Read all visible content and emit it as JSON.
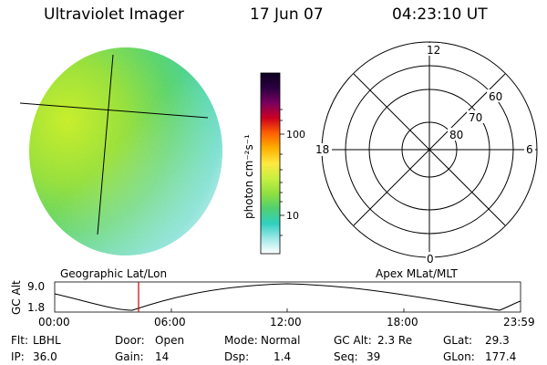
{
  "header": {
    "instrument": "Ultraviolet Imager",
    "date": "17 Jun 07",
    "time": "04:23:10 UT"
  },
  "colorbar": {
    "label": "photon cm⁻²s⁻¹",
    "ticks": [
      "100",
      "10"
    ],
    "scale": "log",
    "colors": [
      "#0d0020",
      "#2a0040",
      "#7a0060",
      "#cc0020",
      "#ff6000",
      "#ffb000",
      "#ffe840",
      "#c8f040",
      "#90e040",
      "#50d070",
      "#30d0c0",
      "#a0e8e8",
      "#ffffff"
    ]
  },
  "polar_plot": {
    "mlt_labels": {
      "top": "12",
      "left": "18",
      "right": "6",
      "bottom": "0"
    },
    "lat_labels": [
      "60",
      "70",
      "80"
    ]
  },
  "left_caption": "Geographic Lat/Lon",
  "right_caption": "Apex MLat/MLT",
  "altitude_plot": {
    "axis_label": "GC Alt",
    "y_ticks": [
      "9.0",
      "1.8"
    ],
    "x_ticks": [
      "00:00",
      "06:00",
      "12:00",
      "18:00",
      "23:59"
    ],
    "marker_time": "04:23",
    "marker_color": "#cc0000"
  },
  "info": {
    "flt": {
      "label": "Flt:",
      "value": "LBHL"
    },
    "ip": {
      "label": "IP:",
      "value": "36.0"
    },
    "door": {
      "label": "Door:",
      "value": "Open"
    },
    "gain": {
      "label": "Gain:",
      "value": "14"
    },
    "mode": {
      "label": "Mode:",
      "value": "Normal"
    },
    "dsp": {
      "label": "Dsp:",
      "value": "1.4"
    },
    "gcalt": {
      "label": "GC Alt:",
      "value": "2.3 Re"
    },
    "seq": {
      "label": "Seq:",
      "value": "39"
    },
    "glat": {
      "label": "GLat:",
      "value": "29.3"
    },
    "glon": {
      "label": "GLon:",
      "value": "177.4"
    }
  }
}
